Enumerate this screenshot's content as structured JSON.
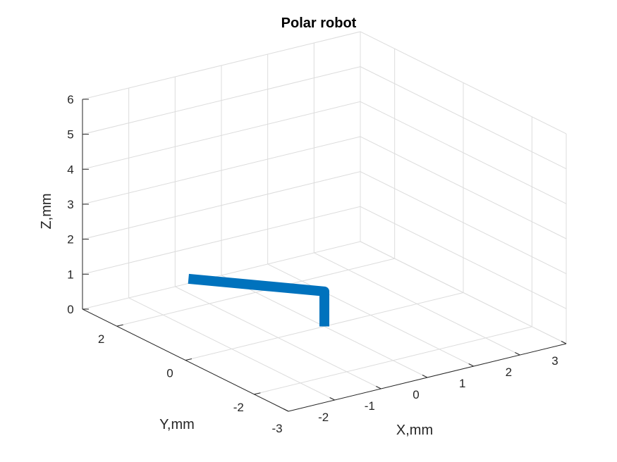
{
  "chart_data": {
    "type": "line",
    "projection": "3d",
    "title": "Polar robot",
    "xlabel": "X,mm",
    "ylabel": "Y,mm",
    "zlabel": "Z,mm",
    "xlim": [
      -3,
      3
    ],
    "ylim": [
      -3,
      3
    ],
    "zlim": [
      0,
      6
    ],
    "xticks": [
      "-3",
      "-2",
      "-1",
      "0",
      "1",
      "2",
      "3"
    ],
    "yticks": [
      "-2",
      "0",
      "2"
    ],
    "zticks": [
      "0",
      "1",
      "2",
      "3",
      "4",
      "5",
      "6"
    ],
    "grid": true,
    "series": [
      {
        "color": "#0072BD",
        "points": [
          {
            "x": 0,
            "y": 0,
            "z": 0
          },
          {
            "x": 0,
            "y": 0,
            "z": 1
          },
          {
            "x": -1.6,
            "y": 1.8,
            "z": 1
          }
        ]
      }
    ]
  }
}
